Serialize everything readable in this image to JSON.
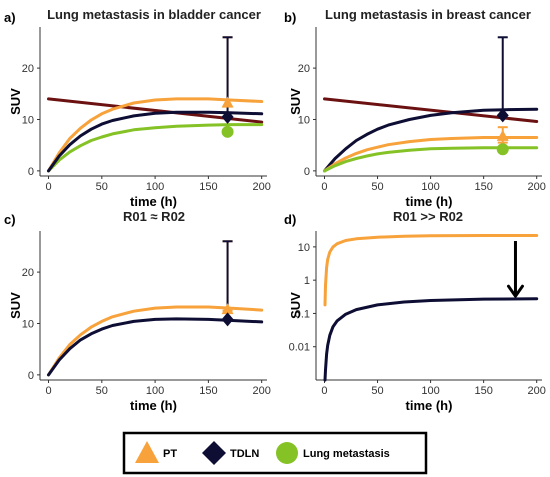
{
  "colors": {
    "pt": "#F7A23B",
    "tdln": "#0E0E35",
    "lung": "#85C226",
    "trend": "#6B1111",
    "arrow": "#000000"
  },
  "legend": {
    "items": [
      {
        "label": "PT",
        "marker": "triangle",
        "color": "#F7A23B"
      },
      {
        "label": "TDLN",
        "marker": "diamond",
        "color": "#0E0E35"
      },
      {
        "label": "Lung metastasis",
        "marker": "circle",
        "color": "#85C226"
      }
    ]
  },
  "chart_data": [
    {
      "panel_label": "a)",
      "type": "line",
      "title": "Lung metastasis in bladder cancer",
      "xlabel": "time (h)",
      "ylabel": "SUV",
      "xlim": [
        -8,
        205
      ],
      "ylim": [
        -1,
        28
      ],
      "xticks": [
        0,
        50,
        100,
        150,
        200
      ],
      "yticks": [
        0,
        10,
        20
      ],
      "y_scale": "linear",
      "series": [
        {
          "color_key": "trend",
          "x": [
            0,
            200
          ],
          "y": [
            14,
            9.5
          ]
        },
        {
          "color_key": "lung",
          "x": [
            0,
            10,
            20,
            30,
            40,
            50,
            60,
            80,
            100,
            120,
            150,
            170,
            200
          ],
          "y": [
            0,
            2.1,
            3.7,
            4.9,
            5.9,
            6.6,
            7.2,
            8.0,
            8.4,
            8.7,
            8.9,
            9.0,
            9.0
          ]
        },
        {
          "color_key": "pt",
          "x": [
            0,
            10,
            20,
            30,
            40,
            50,
            60,
            80,
            100,
            120,
            150,
            170,
            200
          ],
          "y": [
            0,
            3.5,
            6.3,
            8.3,
            9.9,
            11.1,
            12.0,
            13.2,
            13.8,
            14.0,
            14.0,
            13.8,
            13.5
          ]
        },
        {
          "color_key": "tdln",
          "x": [
            0,
            10,
            20,
            30,
            40,
            50,
            60,
            80,
            100,
            120,
            150,
            170,
            200
          ],
          "y": [
            0,
            2.9,
            5.1,
            6.8,
            8.1,
            9.1,
            9.8,
            10.7,
            11.2,
            11.4,
            11.4,
            11.3,
            11.1
          ]
        }
      ],
      "points": [
        {
          "color_key": "pt",
          "marker": "triangle",
          "x": 168,
          "y": 13.3,
          "err": [
            12.5,
            26
          ]
        },
        {
          "color_key": "tdln",
          "marker": "diamond",
          "x": 168,
          "y": 10.5,
          "err": [
            10.5,
            26
          ]
        },
        {
          "color_key": "lung",
          "marker": "circle",
          "x": 168,
          "y": 7.6
        }
      ]
    },
    {
      "panel_label": "b)",
      "type": "line",
      "title": "Lung metastasis in breast cancer",
      "xlabel": "time (h)",
      "ylabel": "SUV",
      "xlim": [
        -8,
        205
      ],
      "ylim": [
        -1,
        28
      ],
      "xticks": [
        0,
        50,
        100,
        150,
        200
      ],
      "yticks": [
        0,
        10,
        20
      ],
      "y_scale": "linear",
      "series": [
        {
          "color_key": "trend",
          "x": [
            0,
            200
          ],
          "y": [
            14,
            9.6
          ]
        },
        {
          "color_key": "tdln",
          "x": [
            0,
            10,
            20,
            30,
            40,
            50,
            60,
            80,
            100,
            120,
            150,
            170,
            200
          ],
          "y": [
            0,
            2.4,
            4.3,
            5.9,
            7.1,
            8.1,
            8.9,
            10.0,
            10.8,
            11.3,
            11.8,
            11.9,
            12.0
          ]
        },
        {
          "color_key": "pt",
          "x": [
            0,
            10,
            20,
            30,
            40,
            50,
            60,
            80,
            100,
            120,
            150,
            170,
            200
          ],
          "y": [
            0,
            1.4,
            2.5,
            3.4,
            4.1,
            4.6,
            5.1,
            5.7,
            6.1,
            6.3,
            6.5,
            6.5,
            6.5
          ]
        },
        {
          "color_key": "lung",
          "x": [
            0,
            10,
            20,
            30,
            40,
            50,
            60,
            80,
            100,
            120,
            150,
            170,
            200
          ],
          "y": [
            0,
            1.0,
            1.8,
            2.4,
            2.9,
            3.3,
            3.6,
            4.0,
            4.3,
            4.4,
            4.5,
            4.5,
            4.5
          ]
        }
      ],
      "points": [
        {
          "color_key": "pt",
          "marker": "triangle",
          "x": 168,
          "y": 6.8,
          "err": [
            5.5,
            8.5
          ]
        },
        {
          "color_key": "lung",
          "marker": "circle",
          "x": 168,
          "y": 4.2
        },
        {
          "color_key": "tdln",
          "marker": "diamond",
          "x": 168,
          "y": 10.8,
          "err": [
            10.8,
            26
          ]
        }
      ]
    },
    {
      "panel_label": "c)",
      "type": "line",
      "title": "R01 ≈ R02",
      "xlabel": "time (h)",
      "ylabel": "SUV",
      "xlim": [
        -8,
        205
      ],
      "ylim": [
        -1,
        28
      ],
      "xticks": [
        0,
        50,
        100,
        150,
        200
      ],
      "yticks": [
        0,
        10,
        20
      ],
      "y_scale": "linear",
      "series": [
        {
          "color_key": "pt",
          "x": [
            0,
            10,
            20,
            30,
            40,
            50,
            60,
            80,
            100,
            120,
            150,
            170,
            200
          ],
          "y": [
            0,
            3.3,
            5.9,
            7.8,
            9.3,
            10.4,
            11.3,
            12.4,
            13.0,
            13.2,
            13.2,
            13.0,
            12.6
          ]
        },
        {
          "color_key": "tdln",
          "x": [
            0,
            10,
            20,
            30,
            40,
            50,
            60,
            80,
            100,
            120,
            150,
            170,
            200
          ],
          "y": [
            0,
            2.9,
            5.1,
            6.8,
            8.0,
            8.9,
            9.6,
            10.4,
            10.8,
            10.9,
            10.8,
            10.6,
            10.3
          ]
        }
      ],
      "points": [
        {
          "color_key": "pt",
          "marker": "triangle",
          "x": 168,
          "y": 12.8,
          "err": [
            12.5,
            26
          ]
        },
        {
          "color_key": "tdln",
          "marker": "diamond",
          "x": 168,
          "y": 10.8,
          "err": [
            10.8,
            26
          ]
        }
      ]
    },
    {
      "panel_label": "d)",
      "type": "line",
      "title": "R01 >> R02",
      "xlabel": "time (h)",
      "ylabel": "SUV",
      "xlim": [
        -8,
        205
      ],
      "ylim": [
        0.001,
        30
      ],
      "xticks": [
        0,
        50,
        100,
        150,
        200
      ],
      "yticks": [
        0.01,
        0.1,
        1,
        10
      ],
      "ytick_labels": [
        "0.01",
        "0.1",
        "1",
        "10"
      ],
      "y_scale": "log",
      "series": [
        {
          "color_key": "pt",
          "x": [
            0.5,
            1,
            2,
            3,
            5,
            8,
            12,
            20,
            30,
            50,
            75,
            100,
            150,
            200
          ],
          "y": [
            0.18,
            0.7,
            2.4,
            4.2,
            7.0,
            10.0,
            12.5,
            15.5,
            17.5,
            19.5,
            20.8,
            21.5,
            22.0,
            22.0
          ]
        },
        {
          "color_key": "tdln",
          "x": [
            0.5,
            1,
            2,
            3,
            5,
            8,
            12,
            20,
            30,
            50,
            75,
            100,
            150,
            200
          ],
          "y": [
            0.001,
            0.002,
            0.006,
            0.011,
            0.022,
            0.04,
            0.06,
            0.095,
            0.13,
            0.18,
            0.22,
            0.245,
            0.27,
            0.275
          ]
        }
      ],
      "points": [],
      "arrow": {
        "x": 180,
        "from": 15,
        "to": 0.33
      }
    }
  ]
}
